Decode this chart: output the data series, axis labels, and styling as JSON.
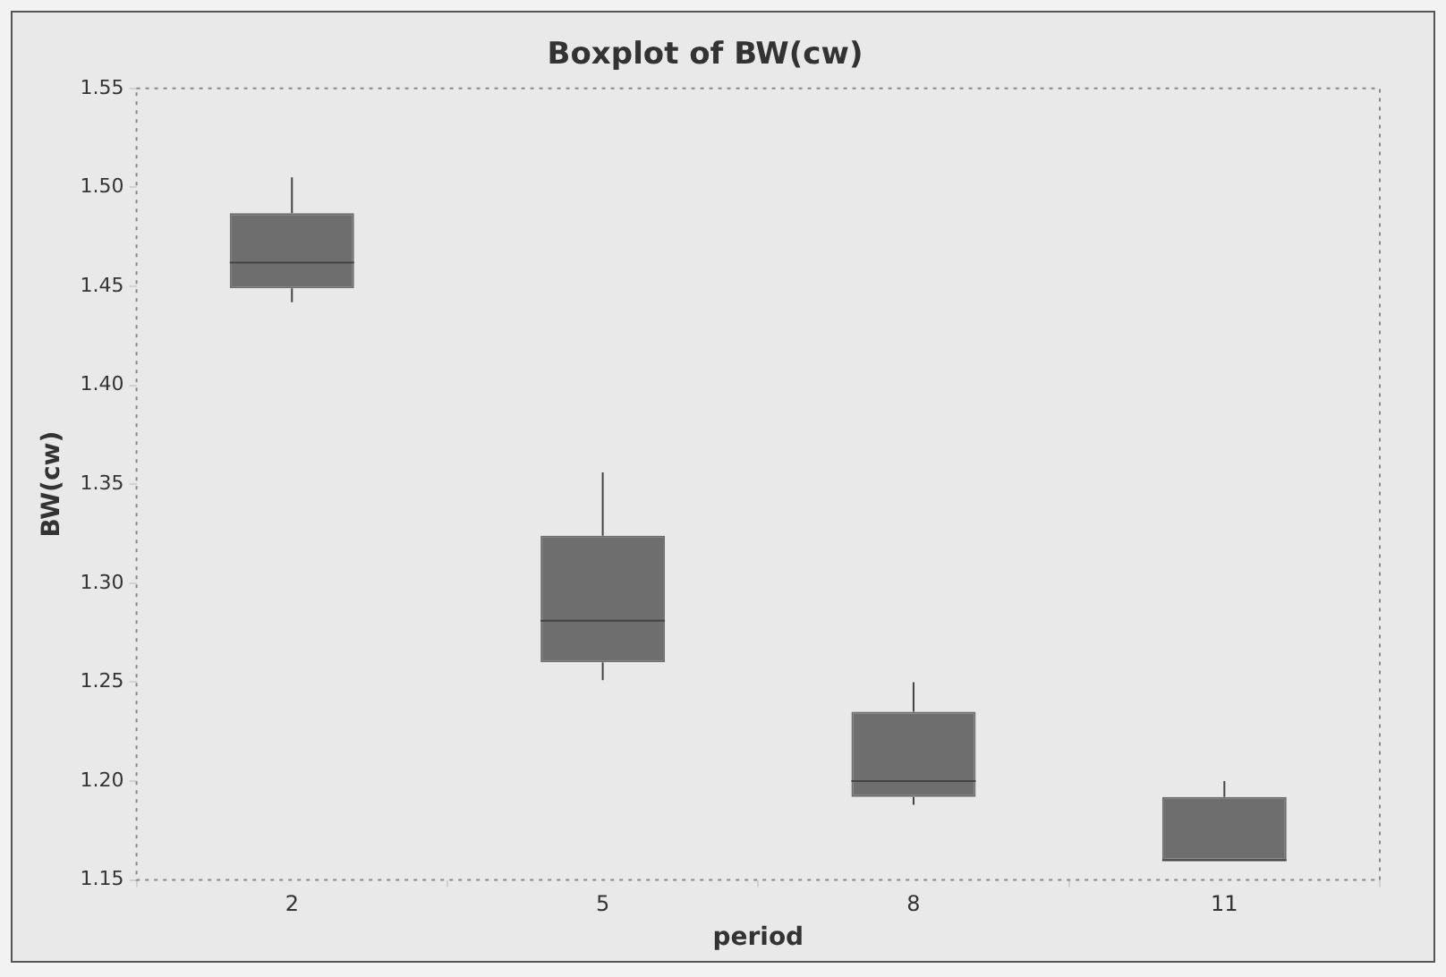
{
  "chart_data": {
    "type": "box",
    "title": "Boxplot of BW(cw)",
    "xlabel": "period",
    "ylabel": "BW(cw)",
    "categories": [
      "2",
      "5",
      "8",
      "11"
    ],
    "color": "#6e6e6e",
    "ylim": [
      1.15,
      1.55
    ],
    "yticks": [
      1.15,
      {
        "value": 1.2,
        "label": "1.20"
      },
      1.25,
      {
        "value": 1.3,
        "label": "1.30"
      },
      1.35,
      {
        "value": 1.4,
        "label": "1.40"
      },
      1.45,
      {
        "value": 1.5,
        "label": "1.50"
      },
      1.55
    ],
    "grid": false,
    "legend": false,
    "boxes": [
      {
        "low": 1.442,
        "q1": 1.449,
        "median": 1.462,
        "q3": 1.487,
        "high": 1.505
      },
      {
        "low": 1.251,
        "q1": 1.26,
        "median": 1.281,
        "q3": 1.324,
        "high": 1.356
      },
      {
        "low": 1.188,
        "q1": 1.192,
        "median": 1.2,
        "q3": 1.235,
        "high": 1.25
      },
      {
        "low": 1.16,
        "q1": 1.16,
        "median": 1.16,
        "q3": 1.192,
        "high": 1.2
      }
    ]
  }
}
